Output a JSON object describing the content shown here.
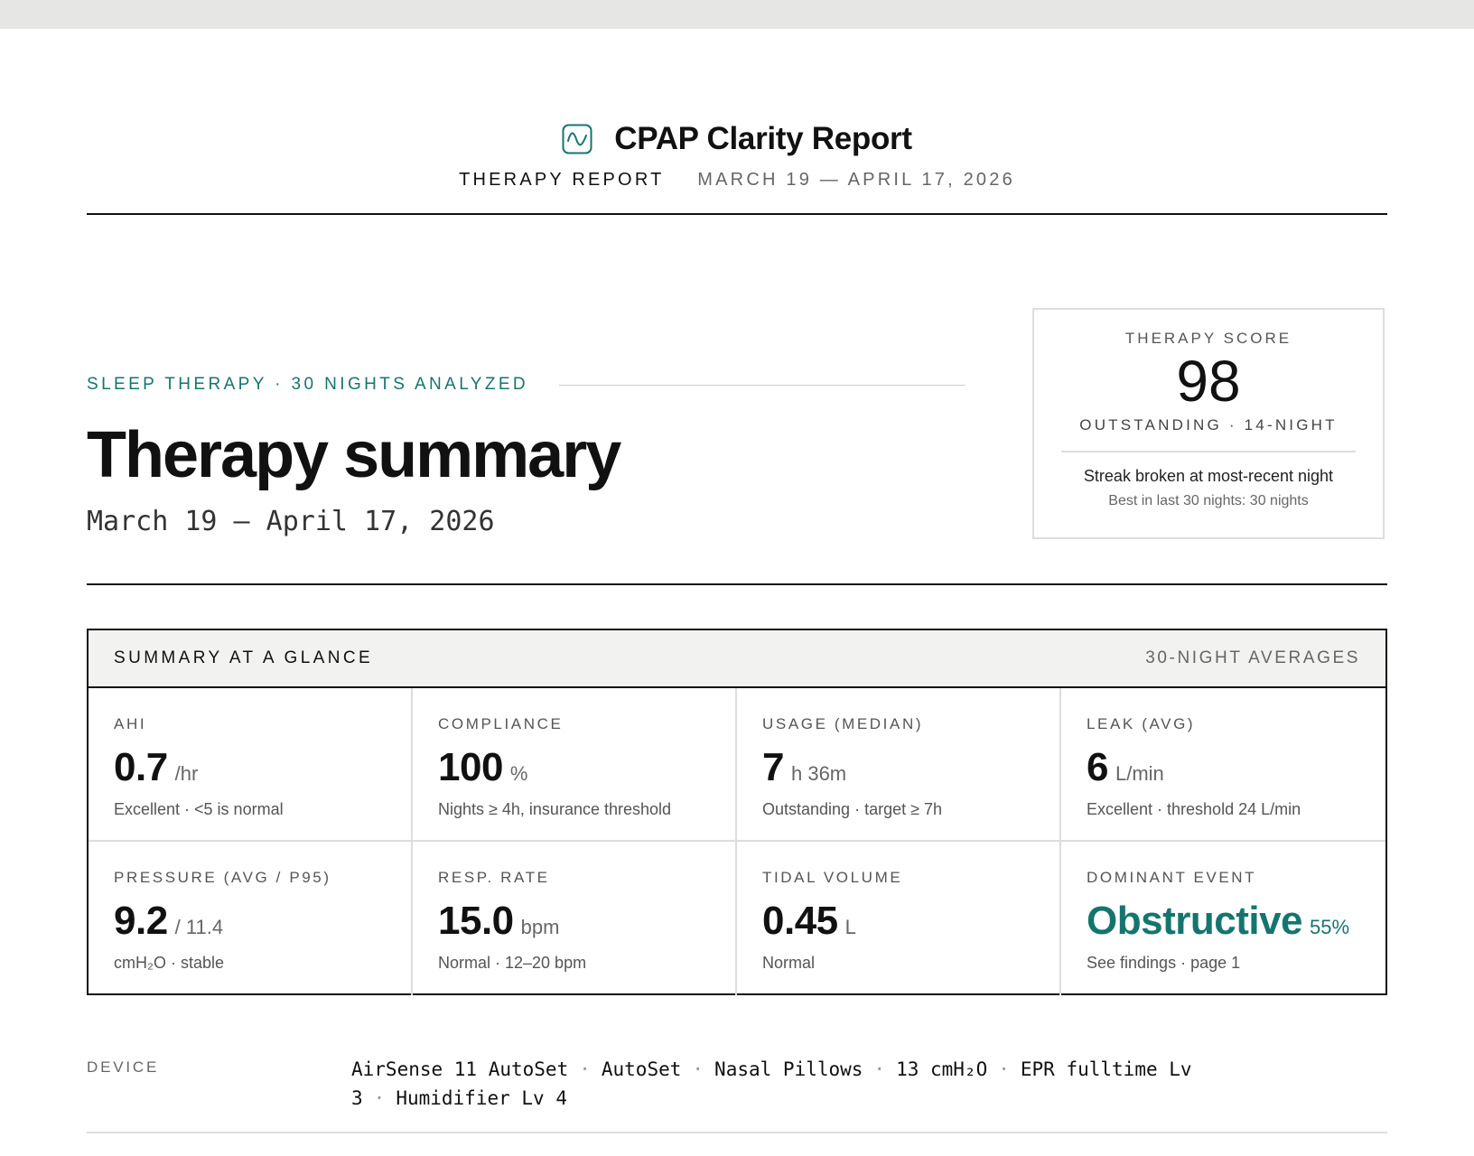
{
  "header": {
    "title": "CPAP Clarity Report",
    "report_label": "THERAPY REPORT",
    "report_dates": "MARCH 19 — APRIL 17, 2026",
    "logo_icon": "waveform-icon",
    "accent_color": "#15756e"
  },
  "hero": {
    "kicker": "SLEEP THERAPY · 30 NIGHTS ANALYZED",
    "title": "Therapy summary",
    "date_range": "March 19 – April 17, 2026"
  },
  "score": {
    "label": "THERAPY SCORE",
    "value": "98",
    "tier": "OUTSTANDING · 14-NIGHT",
    "streak": "Streak broken at most-recent night",
    "best": "Best in last 30 nights: 30 nights"
  },
  "summary": {
    "title": "SUMMARY AT A GLANCE",
    "note": "30-NIGHT AVERAGES",
    "metrics": [
      {
        "label": "AHI",
        "value": "0.7",
        "unit": "/hr",
        "note": "Excellent · <5 is normal"
      },
      {
        "label": "COMPLIANCE",
        "value": "100",
        "unit": "%",
        "note": "Nights ≥ 4h, insurance threshold"
      },
      {
        "label": "USAGE (MEDIAN)",
        "value": "7",
        "unit": "h 36m",
        "note": "Outstanding · target ≥ 7h"
      },
      {
        "label": "LEAK (AVG)",
        "value": "6",
        "unit": "L/min",
        "note": "Excellent · threshold 24 L/min"
      },
      {
        "label": "PRESSURE (AVG / P95)",
        "value": "9.2",
        "unit": "/ 11.4",
        "note": "cmH₂O · stable"
      },
      {
        "label": "RESP. RATE",
        "value": "15.0",
        "unit": "bpm",
        "note": "Normal · 12–20 bpm"
      },
      {
        "label": "TIDAL VOLUME",
        "value": "0.45",
        "unit": "L",
        "note": "Normal"
      },
      {
        "label": "DOMINANT EVENT",
        "value": "Obstructive",
        "unit": "55%",
        "note": "See findings · page 1"
      }
    ]
  },
  "device": {
    "label": "DEVICE",
    "items": [
      "AirSense 11 AutoSet",
      "AutoSet",
      "Nasal Pillows",
      "13 cmH₂O",
      "EPR fulltime Lv 3",
      "Humidifier Lv 4"
    ]
  }
}
